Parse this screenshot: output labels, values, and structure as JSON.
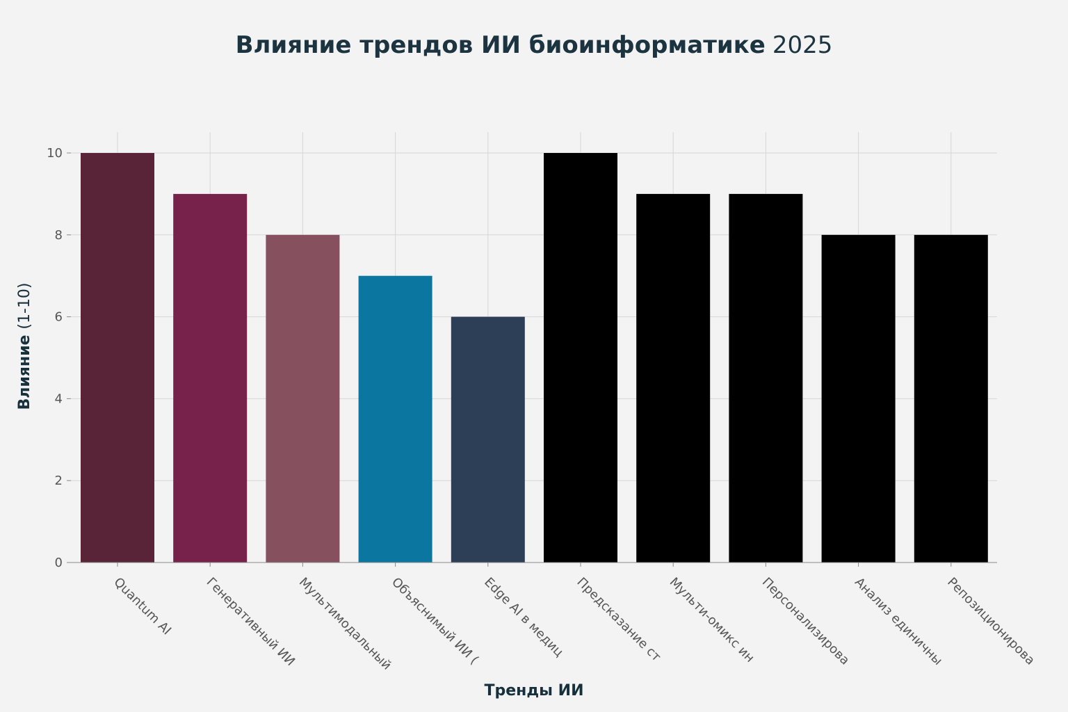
{
  "chart_data": {
    "type": "bar",
    "title_bold": "Влияние трендов ИИ биоинформатике",
    "title_year": "2025",
    "xlabel": "Тренды ИИ",
    "ylabel_bold": "Влияние",
    "ylabel_light": "(1-10)",
    "ylim": [
      0,
      10
    ],
    "yticks": [
      "0",
      "2",
      "4",
      "6",
      "8",
      "10"
    ],
    "grid": true,
    "legend": "none",
    "categories": [
      "Quantum AI",
      "Генеративный ИИ",
      "Мультимодальный",
      "Объяснимый ИИ (",
      "Edge AI в медиц",
      "Предсказание ст",
      "Мульти-омикс ин",
      "Персонализирова",
      "Анализ единичны",
      "Репозиционирова"
    ],
    "values": [
      10,
      9,
      8,
      7,
      6,
      10,
      9,
      9,
      8,
      8
    ],
    "colors": [
      "#5a2438",
      "#76224a",
      "#87505f",
      "#0b76a0",
      "#2d3f57",
      "#000000",
      "#000000",
      "#000000",
      "#000000",
      "#000000"
    ]
  }
}
